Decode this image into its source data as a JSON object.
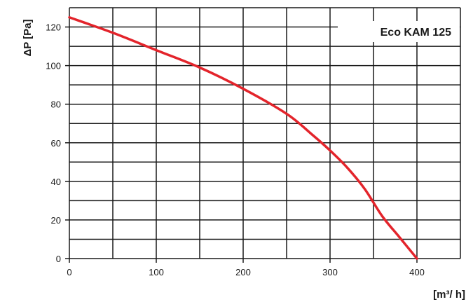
{
  "chart_data": {
    "type": "line",
    "title": "",
    "xlabel": "[m³/ h]",
    "ylabel": "ΔP [Pa]",
    "xlim": [
      0,
      450
    ],
    "ylim": [
      0,
      130
    ],
    "x_ticks": [
      0,
      100,
      200,
      300,
      400
    ],
    "y_ticks": [
      0,
      20,
      40,
      60,
      80,
      100,
      120
    ],
    "x_gridlines": [
      0,
      50,
      100,
      150,
      200,
      250,
      300,
      350,
      400,
      450
    ],
    "y_gridlines": [
      0,
      10,
      20,
      30,
      40,
      50,
      60,
      70,
      80,
      90,
      100,
      110,
      120,
      130
    ],
    "grid": true,
    "legend_position": "top-right",
    "series": [
      {
        "name": "Eco KAM 125",
        "color": "#e3242b",
        "x": [
          0,
          50,
          100,
          150,
          200,
          250,
          280,
          300,
          320,
          340,
          360,
          380,
          400
        ],
        "y": [
          125,
          117,
          108,
          99,
          88,
          75,
          64,
          56,
          47,
          36,
          22,
          11,
          0
        ]
      }
    ]
  }
}
